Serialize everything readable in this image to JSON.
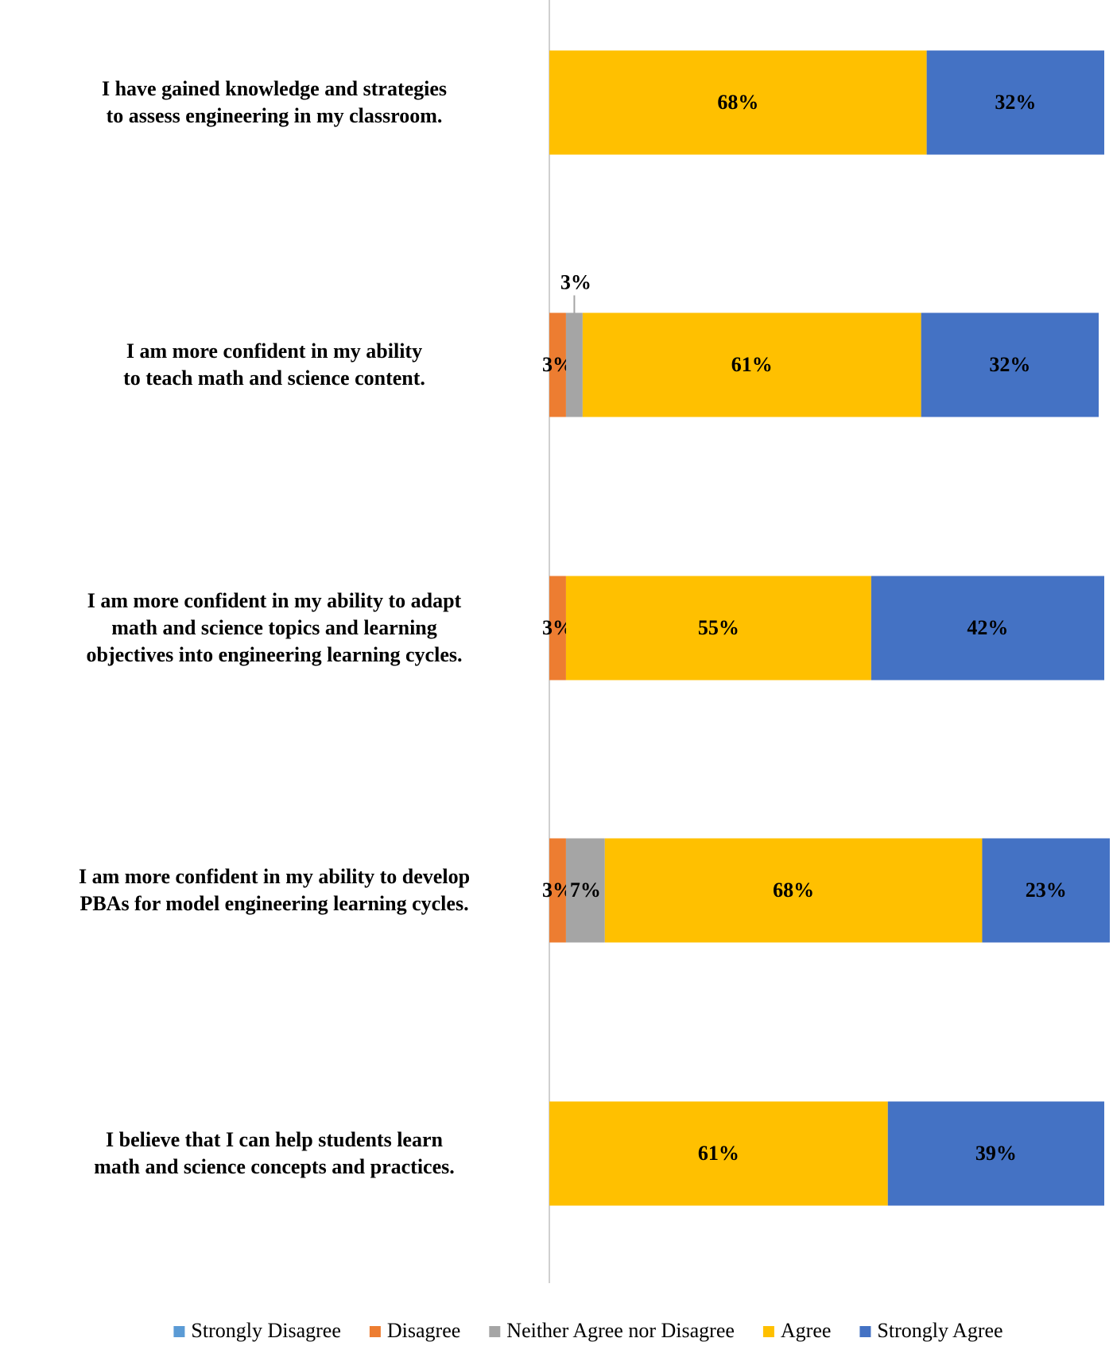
{
  "chart_data": {
    "type": "stacked-bar-horizontal",
    "categories": [
      "I have gained knowledge and strategies to assess engineering in my classroom.",
      "I am more confident in my ability to teach math and science content.",
      "I am more confident in my ability to adapt math and science topics and learning objectives into engineering learning cycles.",
      "I am more confident in my ability to develop PBAs for model engineering learning cycles.",
      "I believe that I can help students learn math and science concepts and practices."
    ],
    "xlim": [
      0,
      100
    ],
    "legend": "bottom",
    "series": [
      {
        "name": "Strongly Disagree",
        "color": "#5b9bd5",
        "values": [
          0,
          0,
          0,
          0,
          0
        ],
        "value_labels": [
          null,
          null,
          null,
          null,
          null
        ]
      },
      {
        "name": "Disagree",
        "color": "#ed7d31",
        "values": [
          0,
          3,
          3,
          3,
          0
        ],
        "value_labels": [
          null,
          "3%",
          "3%",
          "3%",
          null
        ]
      },
      {
        "name": "Neither Agree nor Disagree",
        "color": "#a5a5a5",
        "values": [
          0,
          3,
          0,
          7,
          0
        ],
        "value_labels": [
          null,
          "3%",
          null,
          "7%",
          null
        ]
      },
      {
        "name": "Agree",
        "color": "#ffc000",
        "values": [
          68,
          61,
          55,
          68,
          61
        ],
        "value_labels": [
          "68%",
          "61%",
          "55%",
          "68%",
          "61%"
        ]
      },
      {
        "name": "Strongly Agree",
        "color": "#4472c4",
        "values": [
          32,
          32,
          42,
          23,
          39
        ],
        "value_labels": [
          "32%",
          "32%",
          "42%",
          "23%",
          "39%"
        ]
      }
    ]
  }
}
